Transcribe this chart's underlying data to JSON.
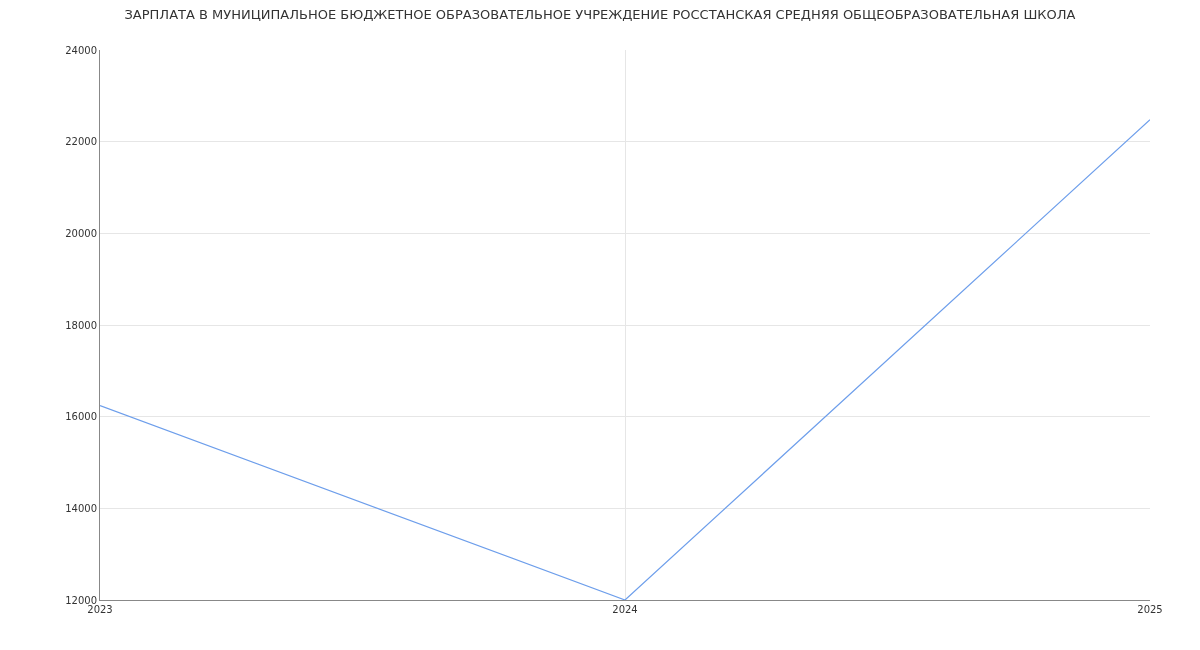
{
  "chart_data": {
    "type": "line",
    "title": "ЗАРПЛАТА В МУНИЦИПАЛЬНОЕ БЮДЖЕТНОЕ ОБРАЗОВАТЕЛЬНОЕ УЧРЕЖДЕНИЕ РОССТАНСКАЯ СРЕДНЯЯ ОБЩЕОБРАЗОВАТЕЛЬНАЯ ШКОЛА",
    "x": [
      2023,
      2024,
      2025
    ],
    "series": [
      {
        "color": "#6d9eeb",
        "values": [
          16240,
          12000,
          22480
        ]
      }
    ],
    "xlim": [
      2023,
      2025
    ],
    "xticks": [
      2023,
      2024,
      2025
    ],
    "ylim": [
      12000,
      24000
    ],
    "yticks": [
      12000,
      14000,
      16000,
      18000,
      20000,
      22000,
      24000
    ],
    "grid": true,
    "marker": "none",
    "line_style": "solid"
  }
}
